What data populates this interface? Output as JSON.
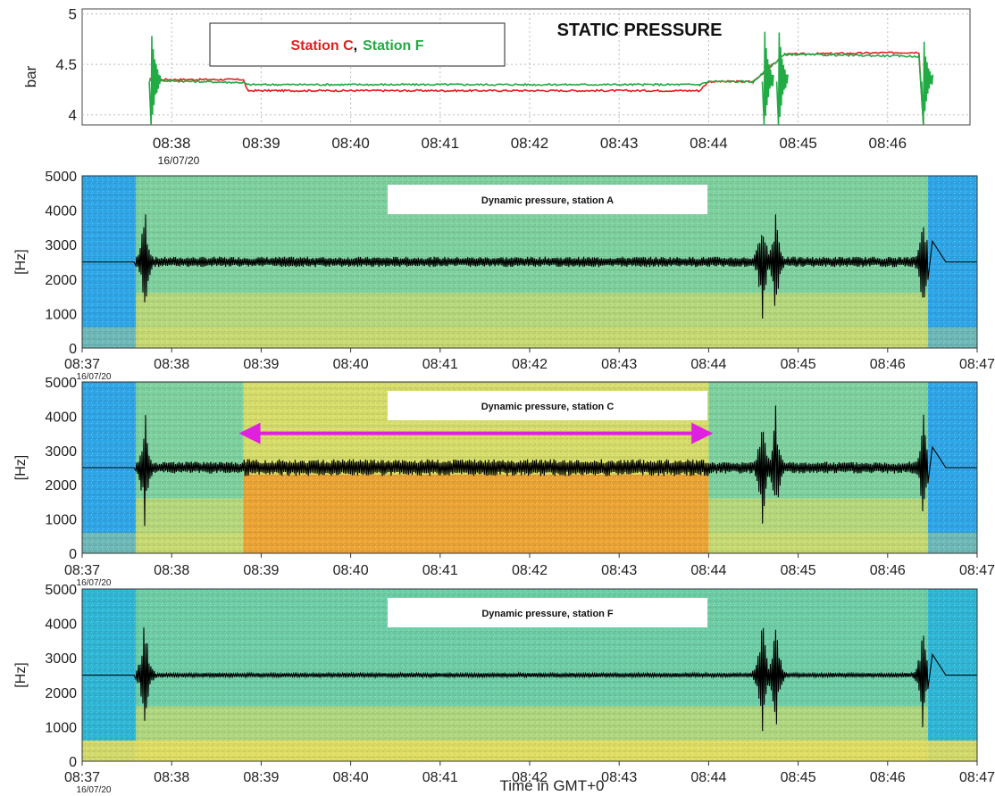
{
  "figure": {
    "xlabel": "Time in GMT+0",
    "date_label": "16/07/20"
  },
  "chart_data": [
    {
      "id": "static",
      "type": "line",
      "title": "STATIC PRESSURE",
      "ylabel": "bar",
      "ylim": [
        3.9,
        5.05
      ],
      "yticks": [
        4,
        4.5,
        5
      ],
      "ytick_labels": [
        "4",
        "4.5",
        "5"
      ],
      "xticks": [
        "08:38",
        "08:39",
        "08:40",
        "08:41",
        "08:42",
        "08:43",
        "08:44",
        "08:45",
        "08:46"
      ],
      "date_label": "16/07/20",
      "grid": true,
      "legend": {
        "position": "top-left",
        "entries": [
          {
            "label": "Station C",
            "color": "#e02020"
          },
          {
            "label": ",",
            "color": "#000000"
          },
          {
            "label": "Station F",
            "color": "#22aa44"
          }
        ]
      },
      "series": [
        {
          "name": "Station C",
          "color": "#e02020",
          "points": [
            [
              37.75,
              4.35
            ],
            [
              38.8,
              4.35
            ],
            [
              38.85,
              4.24
            ],
            [
              43.9,
              4.24
            ],
            [
              44.0,
              4.33
            ],
            [
              44.5,
              4.33
            ],
            [
              44.85,
              4.6
            ],
            [
              46.35,
              4.62
            ],
            [
              46.4,
              3.9
            ]
          ]
        },
        {
          "name": "Station F",
          "color": "#22aa44",
          "points": [
            [
              37.75,
              4.34
            ],
            [
              38.8,
              4.32
            ],
            [
              38.85,
              4.3
            ],
            [
              43.9,
              4.3
            ],
            [
              44.0,
              4.33
            ],
            [
              44.5,
              4.33
            ],
            [
              44.85,
              4.6
            ],
            [
              46.35,
              4.58
            ],
            [
              46.4,
              3.9
            ]
          ]
        }
      ],
      "transients": [
        37.77,
        44.62,
        44.78,
        46.4
      ]
    },
    {
      "id": "station_a",
      "type": "heatmap",
      "title": "Dynamic pressure, station A",
      "ylabel": "[Hz]",
      "ylim": [
        0,
        5000
      ],
      "yticks": [
        0,
        1000,
        2000,
        3000,
        4000,
        5000
      ],
      "xlim": [
        37,
        47
      ],
      "xticks": [
        "08:37",
        "08:38",
        "08:39",
        "08:40",
        "08:41",
        "08:42",
        "08:43",
        "08:44",
        "08:45",
        "08:46",
        "08:47"
      ],
      "date_label": "16/07/20",
      "active_range": [
        37.6,
        46.45
      ],
      "hot_range": null,
      "colors": {
        "background": "#2fa8ea",
        "field": "#7fd3a0",
        "warm": "#e8e060",
        "hot": "#f0a030",
        "trace": "#000000"
      },
      "trace": {
        "baseline": 2500,
        "band": 300,
        "spikes": [
          37.7,
          44.6,
          44.75,
          46.4
        ]
      }
    },
    {
      "id": "station_c",
      "type": "heatmap",
      "title": "Dynamic pressure, station C",
      "ylabel": "[Hz]",
      "ylim": [
        0,
        5000
      ],
      "yticks": [
        0,
        1000,
        2000,
        3000,
        4000,
        5000
      ],
      "xlim": [
        37,
        47
      ],
      "xticks": [
        "08:37",
        "08:38",
        "08:39",
        "08:40",
        "08:41",
        "08:42",
        "08:43",
        "08:44",
        "08:45",
        "08:46",
        "08:47"
      ],
      "date_label": "16/07/20",
      "active_range": [
        37.6,
        46.45
      ],
      "hot_range": [
        38.8,
        44.0
      ],
      "arrow": {
        "from": 38.8,
        "to": 44.0,
        "y": 3500,
        "color": "#e020e0"
      },
      "colors": {
        "background": "#2fa8ea",
        "field": "#7fd3a0",
        "warm": "#e8e060",
        "hot": "#f0a030",
        "trace": "#000000"
      },
      "trace": {
        "baseline": 2500,
        "band": 350,
        "spikes": [
          37.7,
          44.6,
          44.75,
          46.4
        ]
      }
    },
    {
      "id": "station_f",
      "type": "heatmap",
      "title": "Dynamic pressure, station F",
      "ylabel": "[Hz]",
      "ylim": [
        0,
        5000
      ],
      "yticks": [
        0,
        1000,
        2000,
        3000,
        4000,
        5000
      ],
      "xlim": [
        37,
        47
      ],
      "xticks": [
        "08:37",
        "08:38",
        "08:39",
        "08:40",
        "08:41",
        "08:42",
        "08:43",
        "08:44",
        "08:45",
        "08:46",
        "08:47"
      ],
      "date_label": "16/07/20",
      "active_range": [
        37.6,
        46.45
      ],
      "hot_range": null,
      "colors": {
        "background": "#2fb8d8",
        "field": "#6fd0a8",
        "warm": "#e8e060",
        "hot": "#f0a030",
        "trace": "#000000"
      },
      "trace": {
        "baseline": 2500,
        "band": 120,
        "spikes": [
          37.7,
          44.6,
          44.75,
          46.4
        ]
      }
    }
  ]
}
